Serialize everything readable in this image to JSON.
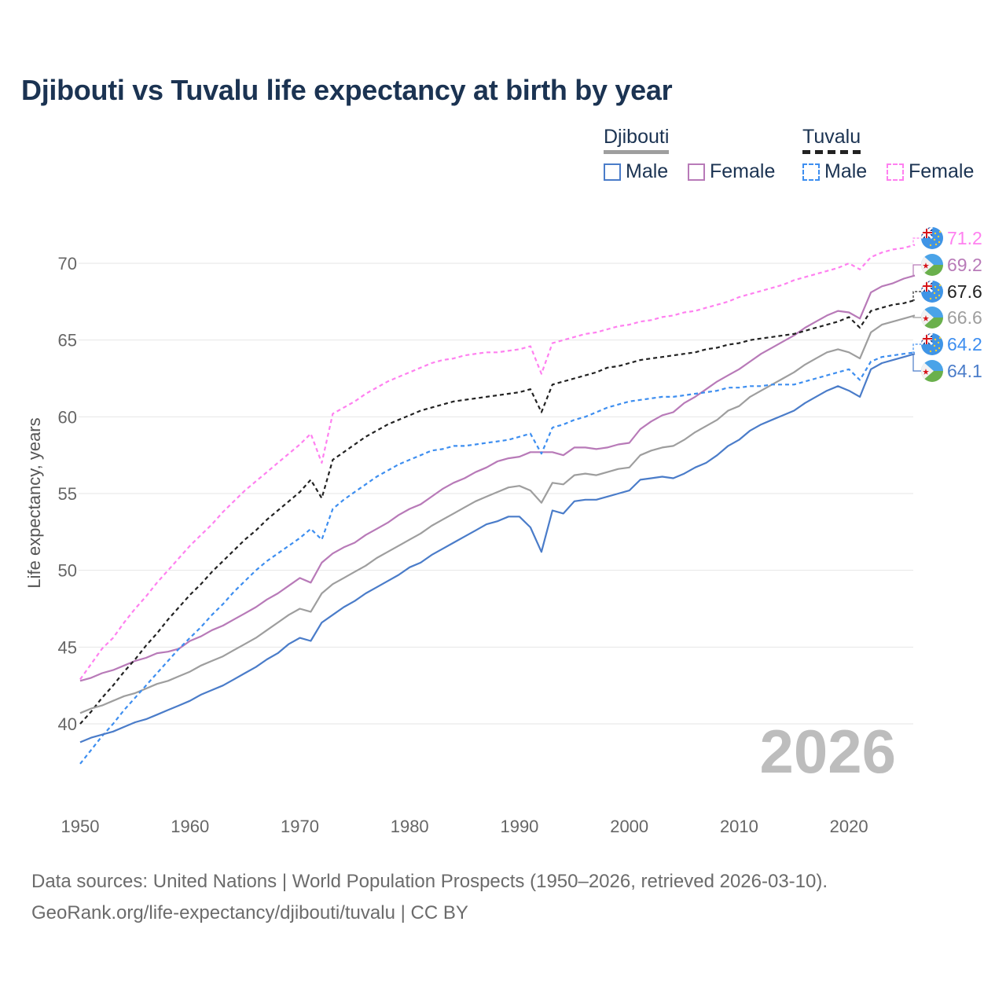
{
  "title": "Djibouti vs Tuvalu life expectancy at birth by year",
  "legend": {
    "groups": [
      {
        "country": "Djibouti",
        "male": "Male",
        "female": "Female",
        "underline_color": "#9e9e9e"
      },
      {
        "country": "Tuvalu",
        "male": "Male",
        "female": "Female",
        "underline_color": "#222222"
      }
    ]
  },
  "current_year": "2026",
  "footer": {
    "line1": "Data sources: United Nations | World Population Prospects (1950–2026, retrieved 2026-03-10).",
    "line2": "GeoRank.org/life-expectancy/djibouti/tuvalu | CC BY"
  },
  "chart_data": {
    "type": "line",
    "title": "Djibouti vs Tuvalu life expectancy at birth by year",
    "xlabel": "",
    "ylabel": "Life expectancy, years",
    "xlim": [
      1950,
      2026
    ],
    "ylim": [
      36.5,
      72.5
    ],
    "x_ticks": [
      "1950",
      "1960",
      "1970",
      "1980",
      "1990",
      "2000",
      "2010",
      "2020"
    ],
    "y_ticks": [
      "40",
      "45",
      "50",
      "55",
      "60",
      "65",
      "70"
    ],
    "grid": true,
    "legend_position": "top-right",
    "x_start": 1950,
    "series": [
      {
        "name": "Tuvalu Female",
        "color": "#ff80f0",
        "dashed": true,
        "flag": "tuvalu-flag",
        "end_label": "71.2",
        "values": [
          42.9,
          43.9,
          44.9,
          45.6,
          46.6,
          47.5,
          48.3,
          49.2,
          50.0,
          50.8,
          51.6,
          52.3,
          53.0,
          53.8,
          54.5,
          55.2,
          55.8,
          56.4,
          57.0,
          57.6,
          58.2,
          58.9,
          57.0,
          60.2,
          60.6,
          61.0,
          61.5,
          61.9,
          62.3,
          62.6,
          62.9,
          63.2,
          63.5,
          63.7,
          63.8,
          64.0,
          64.1,
          64.2,
          64.2,
          64.3,
          64.4,
          64.6,
          62.8,
          64.8,
          65.0,
          65.2,
          65.4,
          65.5,
          65.7,
          65.9,
          66.0,
          66.2,
          66.3,
          66.5,
          66.6,
          66.8,
          66.9,
          67.1,
          67.3,
          67.5,
          67.8,
          68.0,
          68.2,
          68.4,
          68.6,
          68.9,
          69.1,
          69.3,
          69.5,
          69.7,
          70.0,
          69.6,
          70.4,
          70.7,
          70.9,
          71.0,
          71.2
        ]
      },
      {
        "name": "Djibouti Female",
        "color": "#b87ab8",
        "dashed": false,
        "flag": "djibouti-flag",
        "end_label": "69.2",
        "values": [
          42.8,
          43.0,
          43.3,
          43.5,
          43.8,
          44.1,
          44.3,
          44.6,
          44.7,
          44.9,
          45.4,
          45.7,
          46.1,
          46.4,
          46.8,
          47.2,
          47.6,
          48.1,
          48.5,
          49.0,
          49.5,
          49.2,
          50.5,
          51.1,
          51.5,
          51.8,
          52.3,
          52.7,
          53.1,
          53.6,
          54.0,
          54.3,
          54.8,
          55.3,
          55.7,
          56.0,
          56.4,
          56.7,
          57.1,
          57.3,
          57.4,
          57.7,
          57.7,
          57.7,
          57.5,
          58.0,
          58.0,
          57.9,
          58.0,
          58.2,
          58.3,
          59.2,
          59.7,
          60.1,
          60.3,
          60.9,
          61.3,
          61.8,
          62.3,
          62.7,
          63.1,
          63.6,
          64.1,
          64.5,
          64.9,
          65.3,
          65.8,
          66.2,
          66.6,
          66.9,
          66.8,
          66.4,
          68.1,
          68.5,
          68.7,
          69.0,
          69.2
        ]
      },
      {
        "name": "Tuvalu",
        "color": "#222222",
        "dashed": true,
        "flag": "tuvalu-flag",
        "end_label": "67.6",
        "values": [
          40.0,
          40.8,
          41.7,
          42.5,
          43.4,
          44.2,
          45.1,
          45.9,
          46.8,
          47.6,
          48.4,
          49.1,
          49.9,
          50.6,
          51.3,
          52.0,
          52.6,
          53.3,
          53.9,
          54.5,
          55.1,
          55.9,
          54.7,
          57.2,
          57.7,
          58.2,
          58.7,
          59.1,
          59.5,
          59.8,
          60.1,
          60.4,
          60.6,
          60.8,
          61.0,
          61.1,
          61.2,
          61.3,
          61.4,
          61.5,
          61.6,
          61.8,
          60.3,
          62.1,
          62.3,
          62.5,
          62.7,
          62.9,
          63.2,
          63.3,
          63.5,
          63.7,
          63.8,
          63.9,
          64.0,
          64.1,
          64.2,
          64.4,
          64.5,
          64.7,
          64.8,
          65.0,
          65.1,
          65.2,
          65.3,
          65.4,
          65.6,
          65.8,
          66.0,
          66.2,
          66.5,
          65.8,
          66.9,
          67.1,
          67.3,
          67.4,
          67.6
        ]
      },
      {
        "name": "Djibouti",
        "color": "#9e9e9e",
        "dashed": false,
        "flag": "djibouti-flag",
        "end_label": "66.6",
        "values": [
          40.7,
          41.0,
          41.2,
          41.5,
          41.8,
          42.0,
          42.3,
          42.6,
          42.8,
          43.1,
          43.4,
          43.8,
          44.1,
          44.4,
          44.8,
          45.2,
          45.6,
          46.1,
          46.6,
          47.1,
          47.5,
          47.3,
          48.5,
          49.1,
          49.5,
          49.9,
          50.3,
          50.8,
          51.2,
          51.6,
          52.0,
          52.4,
          52.9,
          53.3,
          53.7,
          54.1,
          54.5,
          54.8,
          55.1,
          55.4,
          55.5,
          55.2,
          54.4,
          55.7,
          55.6,
          56.2,
          56.3,
          56.2,
          56.4,
          56.6,
          56.7,
          57.5,
          57.8,
          58.0,
          58.1,
          58.5,
          59.0,
          59.4,
          59.8,
          60.4,
          60.7,
          61.3,
          61.7,
          62.1,
          62.5,
          62.9,
          63.4,
          63.8,
          64.2,
          64.4,
          64.2,
          63.8,
          65.5,
          66.0,
          66.2,
          66.4,
          66.6
        ]
      },
      {
        "name": "Tuvalu Male",
        "color": "#3d8ef0",
        "dashed": true,
        "flag": "tuvalu-flag",
        "end_label": "64.2",
        "values": [
          37.4,
          38.3,
          39.2,
          40.0,
          40.9,
          41.7,
          42.5,
          43.3,
          44.1,
          44.9,
          45.6,
          46.3,
          47.1,
          47.8,
          48.6,
          49.3,
          50.0,
          50.6,
          51.1,
          51.6,
          52.1,
          52.7,
          52.0,
          54.0,
          54.6,
          55.1,
          55.6,
          56.1,
          56.5,
          56.9,
          57.2,
          57.5,
          57.8,
          57.9,
          58.1,
          58.1,
          58.2,
          58.3,
          58.4,
          58.5,
          58.7,
          58.9,
          57.6,
          59.3,
          59.5,
          59.8,
          60.0,
          60.3,
          60.6,
          60.8,
          61.0,
          61.1,
          61.2,
          61.3,
          61.3,
          61.4,
          61.5,
          61.6,
          61.7,
          61.9,
          61.9,
          62.0,
          62.0,
          62.1,
          62.1,
          62.1,
          62.3,
          62.5,
          62.7,
          62.9,
          63.1,
          62.4,
          63.6,
          63.9,
          64.0,
          64.1,
          64.2
        ]
      },
      {
        "name": "Djibouti Male",
        "color": "#4a7cc9",
        "dashed": false,
        "flag": "djibouti-flag",
        "end_label": "64.1",
        "values": [
          38.8,
          39.1,
          39.3,
          39.5,
          39.8,
          40.1,
          40.3,
          40.6,
          40.9,
          41.2,
          41.5,
          41.9,
          42.2,
          42.5,
          42.9,
          43.3,
          43.7,
          44.2,
          44.6,
          45.2,
          45.6,
          45.4,
          46.6,
          47.1,
          47.6,
          48.0,
          48.5,
          48.9,
          49.3,
          49.7,
          50.2,
          50.5,
          51.0,
          51.4,
          51.8,
          52.2,
          52.6,
          53.0,
          53.2,
          53.5,
          53.5,
          52.8,
          51.2,
          53.9,
          53.7,
          54.5,
          54.6,
          54.6,
          54.8,
          55.0,
          55.2,
          55.9,
          56.0,
          56.1,
          56.0,
          56.3,
          56.7,
          57.0,
          57.5,
          58.1,
          58.5,
          59.1,
          59.5,
          59.8,
          60.1,
          60.4,
          60.9,
          61.3,
          61.7,
          62.0,
          61.7,
          61.3,
          63.1,
          63.5,
          63.7,
          63.9,
          64.1
        ]
      }
    ]
  }
}
